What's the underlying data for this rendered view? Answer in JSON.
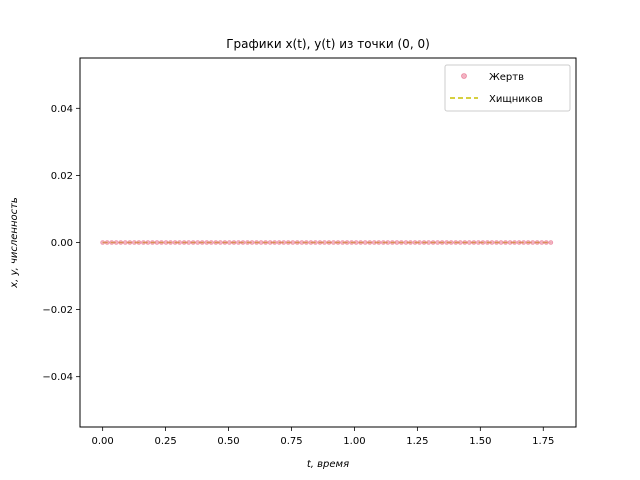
{
  "chart_data": {
    "type": "line",
    "title": "Графики x(t), y(t) из точки (0, 0)",
    "xlabel": "t, время",
    "ylabel": "x, y, численность",
    "xlim": [
      -0.09,
      1.88
    ],
    "ylim": [
      -0.055,
      0.055
    ],
    "xticks": [
      "0.00",
      "0.25",
      "0.50",
      "0.75",
      "1.00",
      "1.25",
      "1.50",
      "1.75"
    ],
    "xtick_values": [
      0,
      0.25,
      0.5,
      0.75,
      1.0,
      1.25,
      1.5,
      1.75
    ],
    "yticks": [
      "−0.04",
      "−0.02",
      "0.00",
      "0.02",
      "0.04"
    ],
    "ytick_values": [
      -0.04,
      -0.02,
      0.0,
      0.02,
      0.04
    ],
    "grid": false,
    "legend_position": "upper-right",
    "x_range": [
      0,
      1.78
    ],
    "num_points": 100,
    "series": [
      {
        "name": "Жертв",
        "marker": "circle",
        "color": "#e8728f",
        "constant_value": 0.0
      },
      {
        "name": "Хищников",
        "linestyle": "dashed",
        "color": "#c8c000",
        "constant_value": 0.0
      }
    ]
  }
}
